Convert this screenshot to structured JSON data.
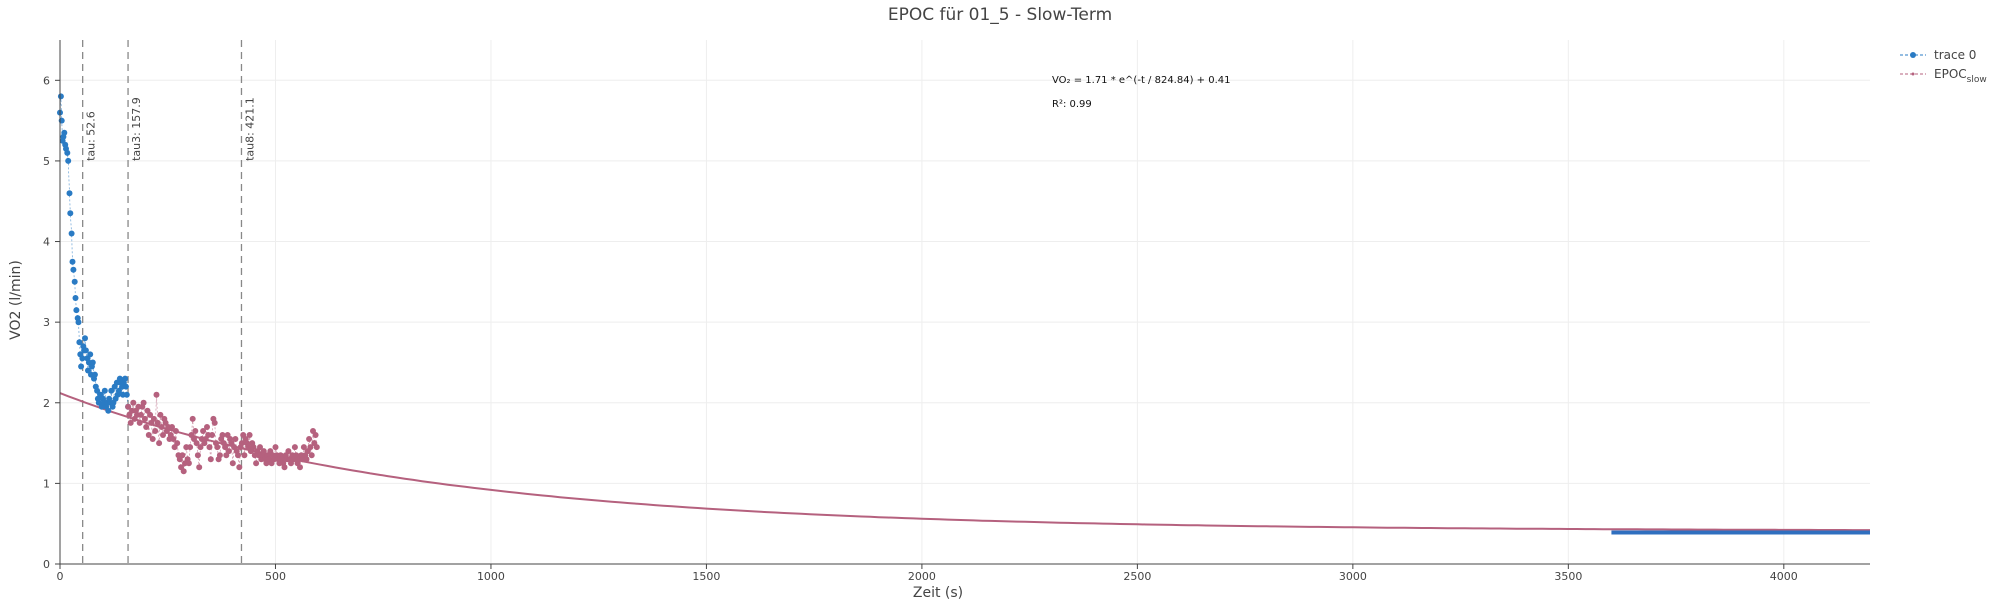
{
  "chart_data": {
    "type": "scatter",
    "title": "EPOC für 01_5 - Slow-Term",
    "xlabel": "Zeit (s)",
    "ylabel": "VO2 (l/min)",
    "xlim": [
      0,
      4200
    ],
    "ylim": [
      0,
      6.5
    ],
    "x_ticks": [
      0,
      500,
      1000,
      1500,
      2000,
      2500,
      3000,
      3500,
      4000
    ],
    "y_ticks": [
      0,
      1,
      2,
      3,
      4,
      5,
      6
    ],
    "x_tick_labels": [
      "0",
      "500",
      "1000",
      "1500",
      "2000",
      "2500",
      "3000",
      "3500",
      "4000"
    ],
    "y_tick_labels": [
      "0",
      "1",
      "2",
      "3",
      "4",
      "5",
      "6"
    ],
    "grid": true,
    "legend_position": "top-right",
    "legend": {
      "trace0": "trace 0",
      "epoc_main": "EPOC",
      "epoc_sub": "slow"
    },
    "annotations": {
      "equation": "VO₂ = 1.71 * e^(-t / 824.84) + 0.41",
      "r2": "R²: 0.99"
    },
    "tau_lines": [
      {
        "x": 52.6,
        "label": "tau: 52.6"
      },
      {
        "x": 157.9,
        "label": "tau3: 157.9"
      },
      {
        "x": 421.1,
        "label": "tau8: 421.1"
      }
    ],
    "fit": {
      "a": 1.71,
      "tau": 824.84,
      "c": 0.41,
      "x_range": [
        0,
        4200
      ],
      "color": "#b5617e"
    },
    "baseline": {
      "x_start": 3600,
      "x_end": 4200,
      "y": 0.39,
      "color": "#2f6fbf",
      "width": 4
    },
    "series": [
      {
        "name": "trace 0",
        "color": "#2a7bc4",
        "x": [
          0,
          2,
          4,
          6,
          8,
          10,
          12,
          14,
          17,
          19,
          22,
          24,
          27,
          29,
          31,
          34,
          36,
          38,
          41,
          43,
          45,
          47,
          49,
          52,
          54,
          56,
          58,
          60,
          63,
          65,
          67,
          70,
          72,
          74,
          76,
          79,
          81,
          83,
          86,
          88,
          90,
          93,
          95,
          97,
          100,
          102,
          104,
          107,
          109,
          112,
          114,
          117,
          119,
          122,
          124,
          127,
          129,
          132,
          134,
          137,
          139,
          141,
          144,
          146,
          148,
          151,
          153,
          155,
          158
        ],
        "y": [
          5.6,
          5.8,
          5.5,
          5.25,
          5.3,
          5.35,
          5.2,
          5.15,
          5.1,
          5.0,
          4.6,
          4.35,
          4.1,
          3.75,
          3.65,
          3.5,
          3.3,
          3.15,
          3.05,
          3.0,
          2.75,
          2.6,
          2.45,
          2.55,
          2.7,
          2.65,
          2.8,
          2.65,
          2.55,
          2.4,
          2.5,
          2.6,
          2.35,
          2.45,
          2.5,
          2.3,
          2.35,
          2.2,
          2.15,
          2.05,
          2.0,
          2.1,
          2.1,
          1.95,
          2.05,
          2.0,
          2.15,
          1.95,
          2.0,
          1.9,
          2.05,
          2.0,
          2.15,
          1.95,
          2.0,
          2.2,
          2.05,
          2.25,
          2.1,
          2.15,
          2.3,
          2.25,
          2.2,
          2.1,
          2.25,
          2.3,
          2.2,
          2.1,
          1.95
        ]
      },
      {
        "name": "EPOC slow",
        "color": "#b5617e",
        "x": [
          158,
          161,
          164,
          167,
          170,
          173,
          176,
          179,
          182,
          185,
          188,
          191,
          194,
          197,
          200,
          203,
          206,
          209,
          212,
          215,
          218,
          221,
          224,
          227,
          230,
          233,
          236,
          239,
          242,
          245,
          248,
          251,
          254,
          257,
          260,
          263,
          266,
          269,
          272,
          275,
          278,
          281,
          284,
          287,
          290,
          293,
          296,
          299,
          302,
          305,
          308,
          311,
          314,
          317,
          320,
          323,
          326,
          329,
          332,
          335,
          338,
          341,
          344,
          347,
          350,
          353,
          356,
          359,
          362,
          365,
          368,
          371,
          374,
          377,
          380,
          383,
          386,
          389,
          392,
          395,
          398,
          401,
          404,
          407,
          410,
          413,
          416,
          419,
          422,
          425,
          428,
          431,
          434,
          437,
          440,
          443,
          446,
          449,
          452,
          455,
          458,
          461,
          464,
          467,
          470,
          473,
          476,
          479,
          482,
          485,
          488,
          491,
          494,
          497,
          500,
          503,
          506,
          509,
          512,
          515,
          518,
          521,
          524,
          527,
          530,
          533,
          536,
          539,
          542,
          545,
          548,
          551,
          554,
          557,
          560,
          563,
          566,
          569,
          572,
          575,
          578,
          581,
          584,
          587,
          590,
          593,
          596
        ],
        "y": [
          1.95,
          1.85,
          1.75,
          1.9,
          2.0,
          1.8,
          1.9,
          1.85,
          1.95,
          1.75,
          1.85,
          1.95,
          2.0,
          1.8,
          1.7,
          1.9,
          1.6,
          1.85,
          1.75,
          1.55,
          1.8,
          1.65,
          2.1,
          1.75,
          1.5,
          1.85,
          1.7,
          1.6,
          1.8,
          1.75,
          1.65,
          1.7,
          1.55,
          1.6,
          1.7,
          1.55,
          1.45,
          1.65,
          1.5,
          1.35,
          1.3,
          1.2,
          1.35,
          1.15,
          1.25,
          1.45,
          1.3,
          1.25,
          1.45,
          1.6,
          1.8,
          1.55,
          1.65,
          1.5,
          1.35,
          1.2,
          1.45,
          1.55,
          1.65,
          1.5,
          1.55,
          1.7,
          1.6,
          1.45,
          1.3,
          1.6,
          1.8,
          1.75,
          1.5,
          1.45,
          1.3,
          1.35,
          1.55,
          1.6,
          1.5,
          1.45,
          1.35,
          1.6,
          1.4,
          1.55,
          1.5,
          1.25,
          1.45,
          1.55,
          1.4,
          1.35,
          1.2,
          1.45,
          1.5,
          1.6,
          1.35,
          1.55,
          1.5,
          1.45,
          1.6,
          1.4,
          1.5,
          1.45,
          1.35,
          1.25,
          1.4,
          1.35,
          1.45,
          1.3,
          1.35,
          1.4,
          1.3,
          1.25,
          1.35,
          1.3,
          1.4,
          1.25,
          1.35,
          1.3,
          1.45,
          1.35,
          1.3,
          1.25,
          1.35,
          1.3,
          1.25,
          1.2,
          1.35,
          1.3,
          1.4,
          1.3,
          1.25,
          1.35,
          1.3,
          1.45,
          1.35,
          1.25,
          1.3,
          1.2,
          1.35,
          1.3,
          1.45,
          1.35,
          1.3,
          1.4,
          1.55,
          1.45,
          1.35,
          1.65,
          1.5,
          1.6,
          1.45
        ]
      }
    ]
  }
}
